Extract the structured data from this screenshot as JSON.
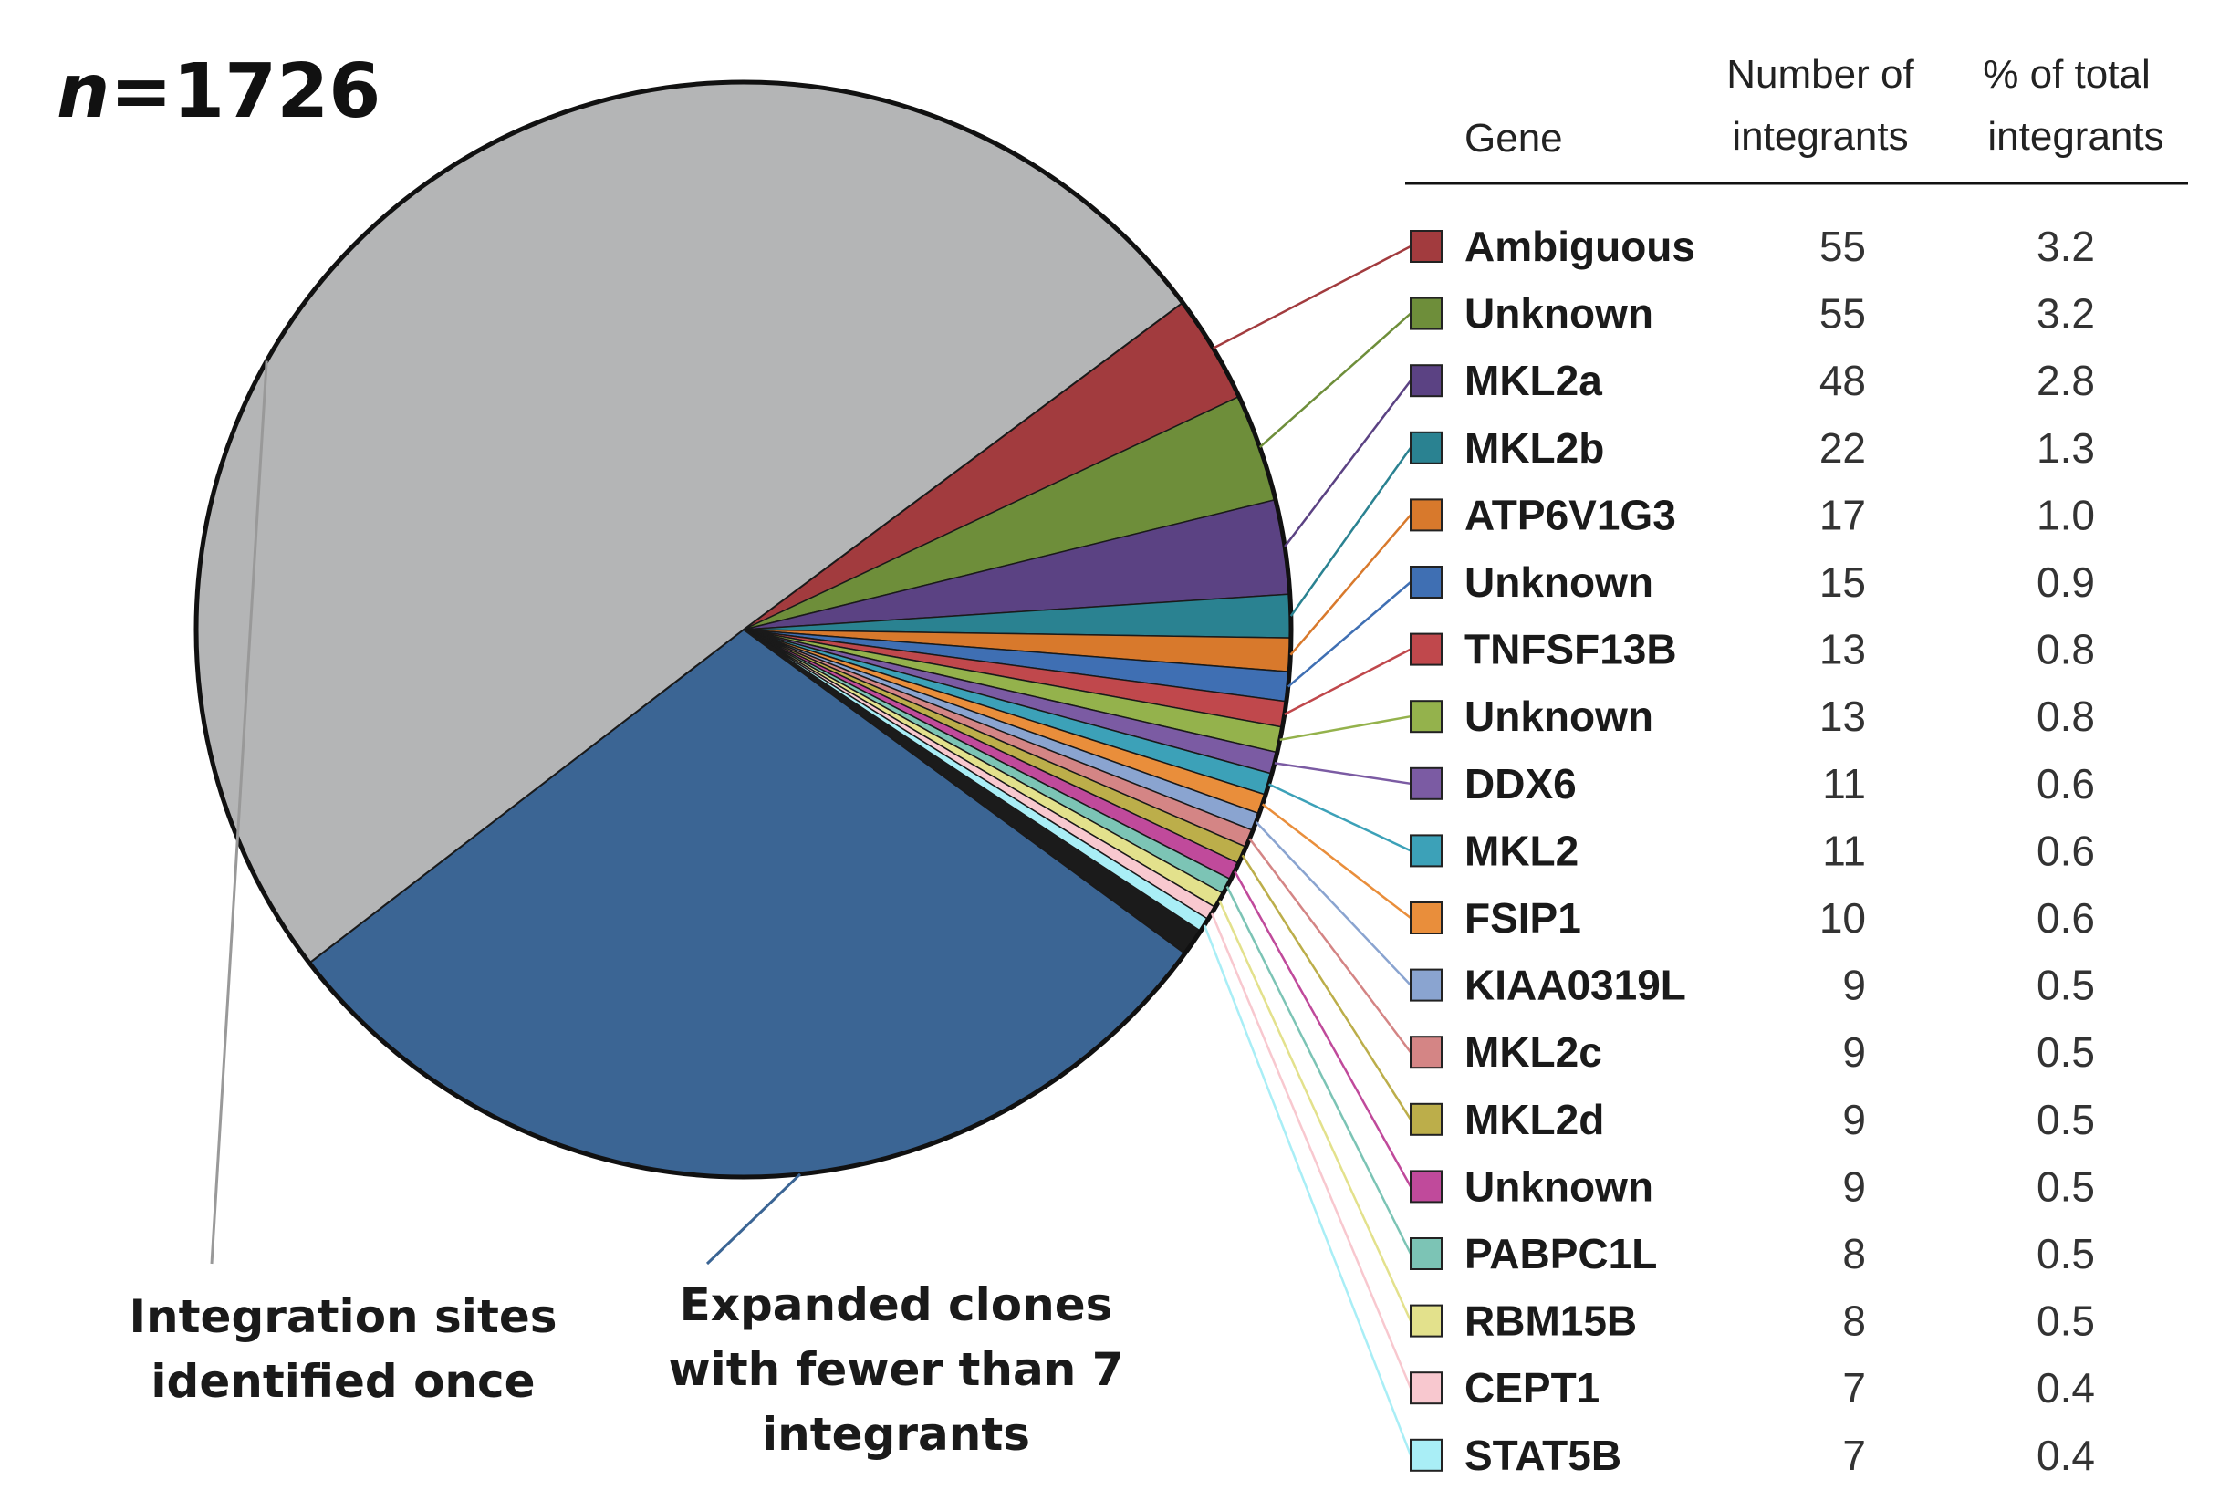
{
  "n_label_italic": "n",
  "n_label_value": "=1726",
  "table": {
    "headers": {
      "gene": "Gene",
      "count_line1": "Number of",
      "count_line2": "integrants",
      "pct_line1": "% of total",
      "pct_line2": "integrants"
    }
  },
  "annotations": {
    "once_line1": "Integration sites",
    "once_line2": "identified once",
    "expanded_line1": "Expanded clones",
    "expanded_line2": "with fewer than 7",
    "expanded_line3": "integrants"
  },
  "chart_data": {
    "type": "pie",
    "total": 1726,
    "slices": [
      {
        "label": "Ambiguous",
        "count": 55,
        "percent": 3.2,
        "color": "#a23b3e"
      },
      {
        "label": "Unknown",
        "count": 55,
        "percent": 3.2,
        "color": "#6e8e3a"
      },
      {
        "label": "MKL2a",
        "count": 48,
        "percent": 2.8,
        "color": "#5b4283"
      },
      {
        "label": "MKL2b",
        "count": 22,
        "percent": 1.3,
        "color": "#2a8291"
      },
      {
        "label": "ATP6V1G3",
        "count": 17,
        "percent": 1.0,
        "color": "#d8792c"
      },
      {
        "label": "Unknown",
        "count": 15,
        "percent": 0.9,
        "color": "#3f6fb3"
      },
      {
        "label": "TNFSF13B",
        "count": 13,
        "percent": 0.8,
        "color": "#c0484c"
      },
      {
        "label": "Unknown",
        "count": 13,
        "percent": 0.8,
        "color": "#94b24c"
      },
      {
        "label": "DDX6",
        "count": 11,
        "percent": 0.6,
        "color": "#7b5ba3"
      },
      {
        "label": "MKL2",
        "count": 11,
        "percent": 0.6,
        "color": "#3ca1b8"
      },
      {
        "label": "FSIP1",
        "count": 10,
        "percent": 0.6,
        "color": "#e98e3b"
      },
      {
        "label": "KIAA0319L",
        "count": 9,
        "percent": 0.5,
        "color": "#8aa4d0"
      },
      {
        "label": "MKL2c",
        "count": 9,
        "percent": 0.5,
        "color": "#d48585"
      },
      {
        "label": "MKL2d",
        "count": 9,
        "percent": 0.5,
        "color": "#bcae4a"
      },
      {
        "label": "Unknown",
        "count": 9,
        "percent": 0.5,
        "color": "#c04a9b"
      },
      {
        "label": "PABPC1L",
        "count": 8,
        "percent": 0.5,
        "color": "#7cc4b5"
      },
      {
        "label": "RBM15B",
        "count": 8,
        "percent": 0.5,
        "color": "#e3e18c"
      },
      {
        "label": "CEPT1",
        "count": 7,
        "percent": 0.4,
        "color": "#f8c8cf"
      },
      {
        "label": "STAT5B",
        "count": 7,
        "percent": 0.4,
        "color": "#a9eef6"
      }
    ],
    "other_slices": [
      {
        "key": "expanded",
        "color": "#3b6594",
        "fraction": 0.295
      },
      {
        "key": "once",
        "color": "#b4b5b6"
      }
    ],
    "small_clone_band_color": "#1b1b1b"
  }
}
